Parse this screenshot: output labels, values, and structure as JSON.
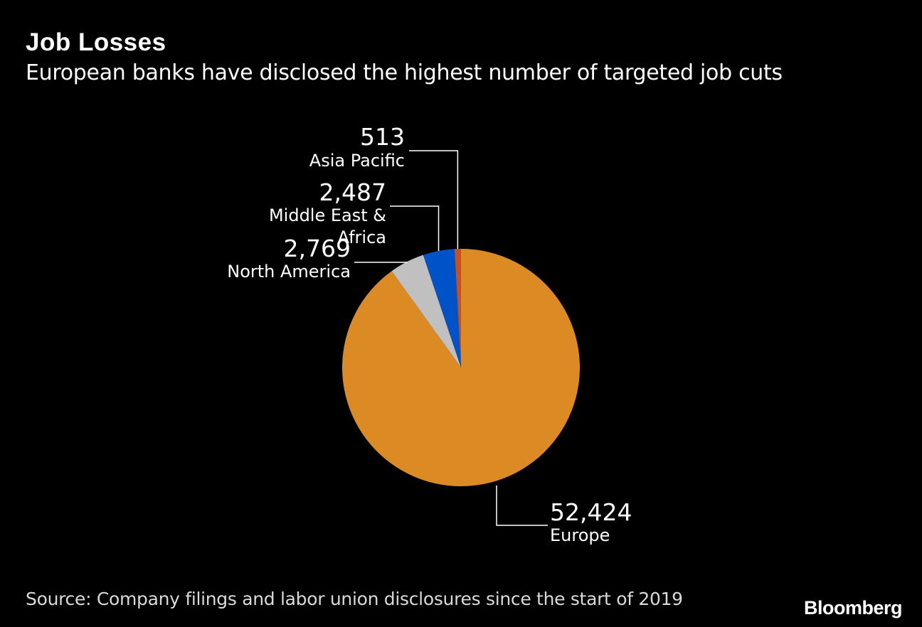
{
  "header": {
    "title": "Job Losses",
    "subtitle": "European banks have disclosed the highest number of targeted job cuts"
  },
  "chart_data": {
    "type": "pie",
    "slices": [
      {
        "label": "Europe",
        "value": 52424,
        "value_label": "52,424",
        "color": "#db8a24"
      },
      {
        "label": "North America",
        "value": 2769,
        "value_label": "2,769",
        "color": "#c0c0c0"
      },
      {
        "label": "Middle East & Africa",
        "value": 2487,
        "value_label": "2,487",
        "color": "#0052c8"
      },
      {
        "label": "Asia Pacific",
        "value": 513,
        "value_label": "513",
        "color": "#c8501e"
      }
    ]
  },
  "footer": {
    "source": "Source: Company filings and labor union disclosures since the start of 2019",
    "brand": "Bloomberg"
  }
}
